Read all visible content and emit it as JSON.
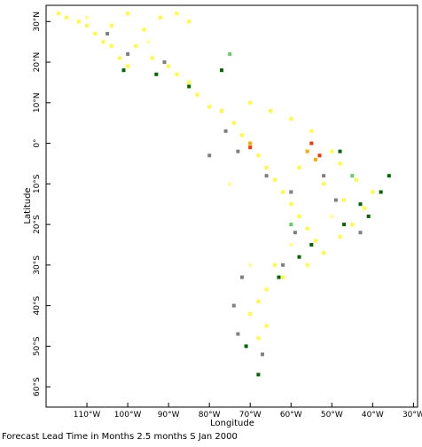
{
  "chart_data": {
    "type": "heatmap",
    "xlabel": "Longitude",
    "ylabel": "Latitude",
    "caption": "Forecast Lead Time in Months 2.5 months S Jan 2000",
    "xlim": [
      -120,
      -29
    ],
    "ylim": [
      -65,
      34
    ],
    "x_ticks": [
      {
        "value": -110,
        "label": "110°W"
      },
      {
        "value": -100,
        "label": "100°W"
      },
      {
        "value": -90,
        "label": "90°W"
      },
      {
        "value": -80,
        "label": "80°W"
      },
      {
        "value": -70,
        "label": "70°W"
      },
      {
        "value": -60,
        "label": "60°W"
      },
      {
        "value": -50,
        "label": "50°W"
      },
      {
        "value": -40,
        "label": "40°W"
      },
      {
        "value": -30,
        "label": "30°W"
      }
    ],
    "y_ticks": [
      {
        "value": 30,
        "label": "30°N"
      },
      {
        "value": 20,
        "label": "20°N"
      },
      {
        "value": 10,
        "label": "10°N"
      },
      {
        "value": 0,
        "label": "0°"
      },
      {
        "value": -10,
        "label": "10°S"
      },
      {
        "value": -20,
        "label": "20°S"
      },
      {
        "value": -30,
        "label": "30°S"
      },
      {
        "value": -40,
        "label": "40°S"
      },
      {
        "value": -50,
        "label": "50°S"
      },
      {
        "value": -60,
        "label": "60°S"
      }
    ],
    "colors": {
      "yellow": "#ffff33",
      "pale_yellow": "#ffff99",
      "orange": "#ffaa00",
      "red": "#ff3300",
      "dark_green": "#006600",
      "light_green": "#66cc66",
      "gray": "#808080"
    },
    "cells": [
      {
        "color": "yellow",
        "lon": -117,
        "lat": 32
      },
      {
        "color": "yellow",
        "lon": -115,
        "lat": 31
      },
      {
        "color": "yellow",
        "lon": -112,
        "lat": 30
      },
      {
        "color": "yellow",
        "lon": -110,
        "lat": 29
      },
      {
        "color": "yellow",
        "lon": -108,
        "lat": 27
      },
      {
        "color": "yellow",
        "lon": -106,
        "lat": 25
      },
      {
        "color": "yellow",
        "lon": -104,
        "lat": 24
      },
      {
        "color": "yellow",
        "lon": -102,
        "lat": 21
      },
      {
        "color": "yellow",
        "lon": -100,
        "lat": 19
      },
      {
        "color": "yellow",
        "lon": -104,
        "lat": 29
      },
      {
        "color": "yellow",
        "lon": -100,
        "lat": 32
      },
      {
        "color": "yellow",
        "lon": -96,
        "lat": 28
      },
      {
        "color": "yellow",
        "lon": -92,
        "lat": 31
      },
      {
        "color": "yellow",
        "lon": -88,
        "lat": 32
      },
      {
        "color": "yellow",
        "lon": -85,
        "lat": 30
      },
      {
        "color": "yellow",
        "lon": -98,
        "lat": 24
      },
      {
        "color": "yellow",
        "lon": -94,
        "lat": 21
      },
      {
        "color": "yellow",
        "lon": -90,
        "lat": 19
      },
      {
        "color": "yellow",
        "lon": -88,
        "lat": 17
      },
      {
        "color": "yellow",
        "lon": -85,
        "lat": 15
      },
      {
        "color": "yellow",
        "lon": -83,
        "lat": 12
      },
      {
        "color": "yellow",
        "lon": -80,
        "lat": 9
      },
      {
        "color": "yellow",
        "lon": -77,
        "lat": 8
      },
      {
        "color": "yellow",
        "lon": -74,
        "lat": 5
      },
      {
        "color": "yellow",
        "lon": -72,
        "lat": 2
      },
      {
        "color": "yellow",
        "lon": -70,
        "lat": 0
      },
      {
        "color": "yellow",
        "lon": -68,
        "lat": -3
      },
      {
        "color": "yellow",
        "lon": -66,
        "lat": -6
      },
      {
        "color": "yellow",
        "lon": -64,
        "lat": -9
      },
      {
        "color": "yellow",
        "lon": -62,
        "lat": -12
      },
      {
        "color": "yellow",
        "lon": -60,
        "lat": -15
      },
      {
        "color": "yellow",
        "lon": -58,
        "lat": -18
      },
      {
        "color": "yellow",
        "lon": -56,
        "lat": -21
      },
      {
        "color": "yellow",
        "lon": -54,
        "lat": -24
      },
      {
        "color": "yellow",
        "lon": -52,
        "lat": -27
      },
      {
        "color": "yellow",
        "lon": -64,
        "lat": -30
      },
      {
        "color": "yellow",
        "lon": -62,
        "lat": -33
      },
      {
        "color": "yellow",
        "lon": -66,
        "lat": -36
      },
      {
        "color": "yellow",
        "lon": -68,
        "lat": -39
      },
      {
        "color": "yellow",
        "lon": -70,
        "lat": -42
      },
      {
        "color": "yellow",
        "lon": -66,
        "lat": -45
      },
      {
        "color": "yellow",
        "lon": -68,
        "lat": -48
      },
      {
        "color": "yellow",
        "lon": -48,
        "lat": -5
      },
      {
        "color": "yellow",
        "lon": -44,
        "lat": -9
      },
      {
        "color": "yellow",
        "lon": -40,
        "lat": -12
      },
      {
        "color": "yellow",
        "lon": -42,
        "lat": -16
      },
      {
        "color": "yellow",
        "lon": -45,
        "lat": -20
      },
      {
        "color": "yellow",
        "lon": -48,
        "lat": -23
      },
      {
        "color": "yellow",
        "lon": -50,
        "lat": -2
      },
      {
        "color": "yellow",
        "lon": -55,
        "lat": 3
      },
      {
        "color": "yellow",
        "lon": -60,
        "lat": 6
      },
      {
        "color": "yellow",
        "lon": -65,
        "lat": 8
      },
      {
        "color": "yellow",
        "lon": -70,
        "lat": 10
      },
      {
        "color": "yellow",
        "lon": -58,
        "lat": -6
      },
      {
        "color": "yellow",
        "lon": -52,
        "lat": -10
      },
      {
        "color": "yellow",
        "lon": -47,
        "lat": -14
      },
      {
        "color": "yellow",
        "lon": -56,
        "lat": -30
      },
      {
        "color": "pale_yellow",
        "lon": -110,
        "lat": 31
      },
      {
        "color": "pale_yellow",
        "lon": -95,
        "lat": 25
      },
      {
        "color": "pale_yellow",
        "lon": -75,
        "lat": -10
      },
      {
        "color": "pale_yellow",
        "lon": -60,
        "lat": -25
      },
      {
        "color": "pale_yellow",
        "lon": -50,
        "lat": -18
      },
      {
        "color": "pale_yellow",
        "lon": -70,
        "lat": -30
      },
      {
        "color": "orange",
        "lon": -70,
        "lat": 0
      },
      {
        "color": "orange",
        "lon": -56,
        "lat": -2
      },
      {
        "color": "orange",
        "lon": -54,
        "lat": -4
      },
      {
        "color": "red",
        "lon": -70,
        "lat": -1
      },
      {
        "color": "red",
        "lon": -55,
        "lat": 0
      },
      {
        "color": "red",
        "lon": -53,
        "lat": -3
      },
      {
        "color": "dark_green",
        "lon": -101,
        "lat": 18
      },
      {
        "color": "dark_green",
        "lon": -93,
        "lat": 17
      },
      {
        "color": "dark_green",
        "lon": -85,
        "lat": 14
      },
      {
        "color": "dark_green",
        "lon": -77,
        "lat": 18
      },
      {
        "color": "dark_green",
        "lon": -55,
        "lat": -25
      },
      {
        "color": "dark_green",
        "lon": -58,
        "lat": -28
      },
      {
        "color": "dark_green",
        "lon": -41,
        "lat": -18
      },
      {
        "color": "dark_green",
        "lon": -38,
        "lat": -12
      },
      {
        "color": "dark_green",
        "lon": -43,
        "lat": -15
      },
      {
        "color": "dark_green",
        "lon": -47,
        "lat": -20
      },
      {
        "color": "dark_green",
        "lon": -63,
        "lat": -33
      },
      {
        "color": "dark_green",
        "lon": -71,
        "lat": -50
      },
      {
        "color": "dark_green",
        "lon": -68,
        "lat": -57
      },
      {
        "color": "dark_green",
        "lon": -48,
        "lat": -2
      },
      {
        "color": "dark_green",
        "lon": -36,
        "lat": -8
      },
      {
        "color": "light_green",
        "lon": -45,
        "lat": -8
      },
      {
        "color": "light_green",
        "lon": -60,
        "lat": -20
      },
      {
        "color": "light_green",
        "lon": -75,
        "lat": 22
      },
      {
        "color": "gray",
        "lon": -73,
        "lat": -2
      },
      {
        "color": "gray",
        "lon": -66,
        "lat": -8
      },
      {
        "color": "gray",
        "lon": -60,
        "lat": -12
      },
      {
        "color": "gray",
        "lon": -59,
        "lat": -22
      },
      {
        "color": "gray",
        "lon": -62,
        "lat": -30
      },
      {
        "color": "gray",
        "lon": -72,
        "lat": -33
      },
      {
        "color": "gray",
        "lon": -74,
        "lat": -40
      },
      {
        "color": "gray",
        "lon": -73,
        "lat": -47
      },
      {
        "color": "gray",
        "lon": -67,
        "lat": -52
      },
      {
        "color": "gray",
        "lon": -80,
        "lat": -3
      },
      {
        "color": "gray",
        "lon": -76,
        "lat": 3
      },
      {
        "color": "gray",
        "lon": -52,
        "lat": -8
      },
      {
        "color": "gray",
        "lon": -49,
        "lat": -14
      },
      {
        "color": "gray",
        "lon": -43,
        "lat": -22
      },
      {
        "color": "gray",
        "lon": -100,
        "lat": 22
      },
      {
        "color": "gray",
        "lon": -105,
        "lat": 27
      },
      {
        "color": "gray",
        "lon": -91,
        "lat": 20
      }
    ]
  }
}
